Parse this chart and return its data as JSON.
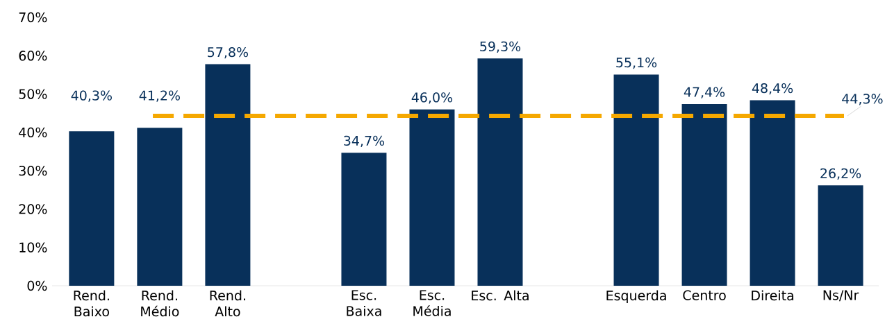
{
  "chart_data": {
    "type": "bar",
    "categories": [
      "Rend. Baixo",
      "Rend. Médio",
      "Rend. Alto",
      null,
      "Esc. Baixa",
      "Esc. Média",
      "Esc. Alta",
      null,
      "Esquerda",
      "Centro",
      "Direita",
      "Ns/Nr"
    ],
    "values": [
      40.3,
      41.2,
      57.8,
      null,
      34.7,
      46.0,
      59.3,
      null,
      55.1,
      47.4,
      48.4,
      26.2
    ],
    "value_labels": [
      "40,3%",
      "41,2%",
      "57,8%",
      null,
      "34,7%",
      "46,0%",
      "59,3%",
      null,
      "55,1%",
      "47,4%",
      "48,4%",
      "26,2%"
    ],
    "color": "#08305a",
    "ylim": [
      0,
      70
    ],
    "yticks": [
      {
        "value": 0,
        "label": "0%"
      },
      {
        "value": 10,
        "label": "10%"
      },
      {
        "value": 20,
        "label": "20%"
      },
      {
        "value": 30,
        "label": "30%"
      },
      {
        "value": 40,
        "label": "40%"
      },
      {
        "value": 50,
        "label": "50%"
      },
      {
        "value": 60,
        "label": "60%"
      },
      {
        "value": 70,
        "label": "70%"
      }
    ],
    "ref_lines": [
      {
        "axis": "y",
        "value": 44.3,
        "label": "44,3%",
        "color": "#f5a800",
        "line_style": "dashed"
      }
    ]
  }
}
